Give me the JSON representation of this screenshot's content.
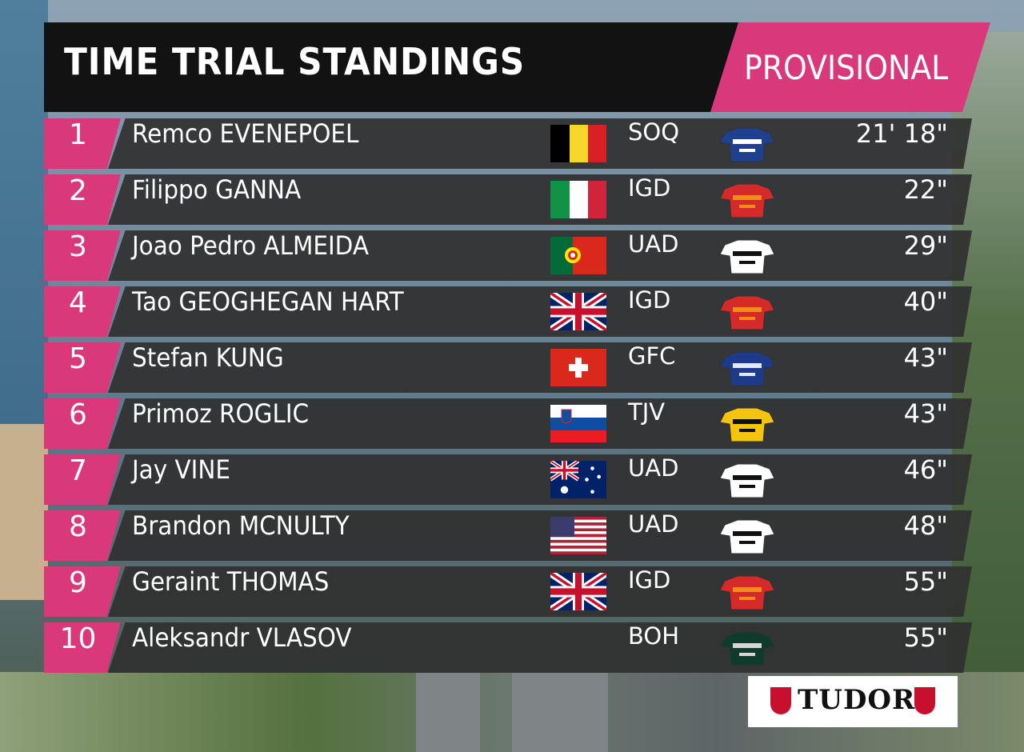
{
  "header": {
    "title": "TIME TRIAL STANDINGS",
    "status": "PROVISIONAL"
  },
  "colors": {
    "accent": "#d9397a",
    "header_bg": "#121212",
    "row_bg": "#303030"
  },
  "rows": [
    {
      "rank": "1",
      "name": "Remco EVENEPOEL",
      "team": "SOQ",
      "time": "21' 18\"",
      "flag": "belgium-flag",
      "jersey": "soq-jersey"
    },
    {
      "rank": "2",
      "name": "Filippo GANNA",
      "team": "IGD",
      "time": "22\"",
      "flag": "italy-flag",
      "jersey": "igd-jersey"
    },
    {
      "rank": "3",
      "name": "Joao Pedro ALMEIDA",
      "team": "UAD",
      "time": "29\"",
      "flag": "portugal-flag",
      "jersey": "uad-jersey"
    },
    {
      "rank": "4",
      "name": "Tao GEOGHEGAN HART",
      "team": "IGD",
      "time": "40\"",
      "flag": "uk-flag",
      "jersey": "igd-jersey"
    },
    {
      "rank": "5",
      "name": "Stefan KUNG",
      "team": "GFC",
      "time": "43\"",
      "flag": "switzerland-flag",
      "jersey": "gfc-jersey"
    },
    {
      "rank": "6",
      "name": "Primoz ROGLIC",
      "team": "TJV",
      "time": "43\"",
      "flag": "slovenia-flag",
      "jersey": "tjv-jersey"
    },
    {
      "rank": "7",
      "name": "Jay VINE",
      "team": "UAD",
      "time": "46\"",
      "flag": "australia-flag",
      "jersey": "uad-jersey"
    },
    {
      "rank": "8",
      "name": "Brandon MCNULTY",
      "team": "UAD",
      "time": "48\"",
      "flag": "usa-flag",
      "jersey": "uad-jersey"
    },
    {
      "rank": "9",
      "name": "Geraint THOMAS",
      "team": "IGD",
      "time": "55\"",
      "flag": "uk-flag",
      "jersey": "igd-jersey"
    },
    {
      "rank": "10",
      "name": "Aleksandr VLASOV",
      "team": "BOH",
      "time": "55\"",
      "flag": "",
      "jersey": "boh-jersey"
    }
  ],
  "sponsor": {
    "name": "TUDOR"
  }
}
